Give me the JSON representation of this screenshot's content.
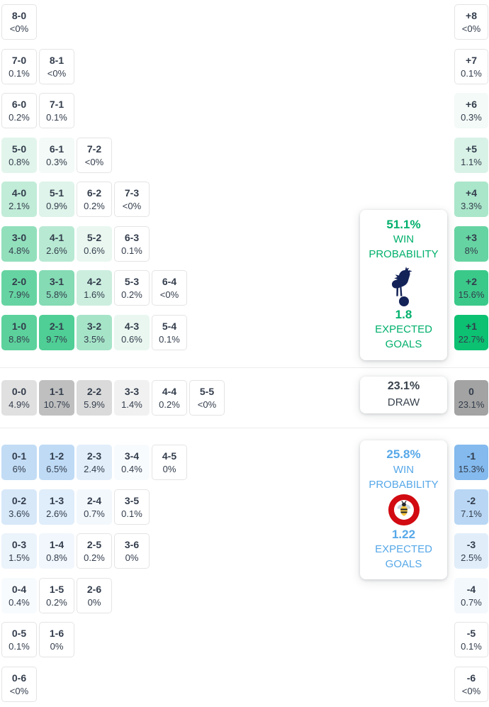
{
  "colors": {
    "home": "#00b06c",
    "draw": "#39434e",
    "away": "#57a8e8",
    "home_crest_navy": "#132257",
    "away_crest_red": "#d20a11"
  },
  "cards": {
    "home": {
      "win_pct": "51.1%",
      "win_label": "WIN PROBABILITY",
      "expected": "1.8",
      "expected_label": "EXPECTED GOALS"
    },
    "draw": {
      "pct": "23.1%",
      "label": "DRAW"
    },
    "away": {
      "win_pct": "25.8%",
      "win_label": "WIN PROBABILITY",
      "expected": "1.22",
      "expected_label": "EXPECTED GOALS"
    }
  },
  "chart_data": {
    "type": "heatmap",
    "description": "Correct-score probability matrix with goal-margin totals on the right edge",
    "home": {
      "rows": [
        {
          "cells": [
            {
              "score": "8-0",
              "pct": "<0%",
              "bg": "#ffffff"
            }
          ],
          "margin": {
            "margin": "+8",
            "pct": "<0%",
            "bg": "#ffffff"
          }
        },
        {
          "cells": [
            {
              "score": "7-0",
              "pct": "0.1%",
              "bg": "#ffffff"
            },
            {
              "score": "8-1",
              "pct": "<0%",
              "bg": "#ffffff"
            }
          ],
          "margin": {
            "margin": "+7",
            "pct": "0.1%",
            "bg": "#ffffff"
          }
        },
        {
          "cells": [
            {
              "score": "6-0",
              "pct": "0.2%",
              "bg": "#ffffff"
            },
            {
              "score": "7-1",
              "pct": "0.1%",
              "bg": "#ffffff"
            }
          ],
          "margin": {
            "margin": "+6",
            "pct": "0.3%",
            "bg": "#f3faf7"
          }
        },
        {
          "cells": [
            {
              "score": "5-0",
              "pct": "0.8%",
              "bg": "#e2f5ec"
            },
            {
              "score": "6-1",
              "pct": "0.3%",
              "bg": "#f3faf7"
            },
            {
              "score": "7-2",
              "pct": "<0%",
              "bg": "#ffffff"
            }
          ],
          "margin": {
            "margin": "+5",
            "pct": "1.1%",
            "bg": "#d9f2e7"
          }
        },
        {
          "cells": [
            {
              "score": "4-0",
              "pct": "2.1%",
              "bg": "#c1ecd8"
            },
            {
              "score": "5-1",
              "pct": "0.9%",
              "bg": "#dff4ea"
            },
            {
              "score": "6-2",
              "pct": "0.2%",
              "bg": "#ffffff"
            },
            {
              "score": "7-3",
              "pct": "<0%",
              "bg": "#ffffff"
            }
          ],
          "margin": {
            "margin": "+4",
            "pct": "3.3%",
            "bg": "#aae6ca"
          }
        },
        {
          "cells": [
            {
              "score": "3-0",
              "pct": "4.8%",
              "bg": "#92dfbc"
            },
            {
              "score": "4-1",
              "pct": "2.6%",
              "bg": "#b8e9d3"
            },
            {
              "score": "5-2",
              "pct": "0.6%",
              "bg": "#e9f7f0"
            },
            {
              "score": "6-3",
              "pct": "0.1%",
              "bg": "#ffffff"
            }
          ],
          "margin": {
            "margin": "+3",
            "pct": "8%",
            "bg": "#66d4a2"
          }
        },
        {
          "cells": [
            {
              "score": "2-0",
              "pct": "7.9%",
              "bg": "#66d4a2"
            },
            {
              "score": "3-1",
              "pct": "5.8%",
              "bg": "#84dbb4"
            },
            {
              "score": "4-2",
              "pct": "1.6%",
              "bg": "#cceedf"
            },
            {
              "score": "5-3",
              "pct": "0.2%",
              "bg": "#ffffff"
            },
            {
              "score": "6-4",
              "pct": "<0%",
              "bg": "#ffffff"
            }
          ],
          "margin": {
            "margin": "+2",
            "pct": "15.6%",
            "bg": "#3bc98a"
          }
        },
        {
          "cells": [
            {
              "score": "1-0",
              "pct": "8.8%",
              "bg": "#5cd19c"
            },
            {
              "score": "2-1",
              "pct": "9.7%",
              "bg": "#4fce95"
            },
            {
              "score": "3-2",
              "pct": "3.5%",
              "bg": "#a6e4c8"
            },
            {
              "score": "4-3",
              "pct": "0.6%",
              "bg": "#e9f7f0"
            },
            {
              "score": "5-4",
              "pct": "0.1%",
              "bg": "#ffffff"
            }
          ],
          "margin": {
            "margin": "+1",
            "pct": "22.7%",
            "bg": "#0cc172"
          }
        }
      ]
    },
    "draw": {
      "rows": [
        {
          "cells": [
            {
              "score": "0-0",
              "pct": "4.9%",
              "bg": "#e0e0e0"
            },
            {
              "score": "1-1",
              "pct": "10.7%",
              "bg": "#bfbfbf"
            },
            {
              "score": "2-2",
              "pct": "5.9%",
              "bg": "#dadada"
            },
            {
              "score": "3-3",
              "pct": "1.4%",
              "bg": "#f1f1f1"
            },
            {
              "score": "4-4",
              "pct": "0.2%",
              "bg": "#ffffff"
            },
            {
              "score": "5-5",
              "pct": "<0%",
              "bg": "#ffffff"
            }
          ],
          "margin": {
            "margin": "0",
            "pct": "23.1%",
            "bg": "#a3a3a3"
          }
        }
      ]
    },
    "away": {
      "rows": [
        {
          "cells": [
            {
              "score": "0-1",
              "pct": "6%",
              "bg": "#c2dcf5"
            },
            {
              "score": "1-2",
              "pct": "6.5%",
              "bg": "#bedaf5"
            },
            {
              "score": "2-3",
              "pct": "2.4%",
              "bg": "#e2eefa"
            },
            {
              "score": "3-4",
              "pct": "0.4%",
              "bg": "#f8fbfe"
            },
            {
              "score": "4-5",
              "pct": "0%",
              "bg": "#ffffff"
            }
          ],
          "margin": {
            "margin": "-1",
            "pct": "15.3%",
            "bg": "#84baee"
          }
        },
        {
          "cells": [
            {
              "score": "0-2",
              "pct": "3.6%",
              "bg": "#d7e8f9"
            },
            {
              "score": "1-3",
              "pct": "2.6%",
              "bg": "#e0edfa"
            },
            {
              "score": "2-4",
              "pct": "0.7%",
              "bg": "#f3f8fd"
            },
            {
              "score": "3-5",
              "pct": "0.1%",
              "bg": "#ffffff"
            }
          ],
          "margin": {
            "margin": "-2",
            "pct": "7.1%",
            "bg": "#b9d7f4"
          }
        },
        {
          "cells": [
            {
              "score": "0-3",
              "pct": "1.5%",
              "bg": "#ebf3fb"
            },
            {
              "score": "1-4",
              "pct": "0.8%",
              "bg": "#f2f7fd"
            },
            {
              "score": "2-5",
              "pct": "0.2%",
              "bg": "#ffffff"
            },
            {
              "score": "3-6",
              "pct": "0%",
              "bg": "#ffffff"
            }
          ],
          "margin": {
            "margin": "-3",
            "pct": "2.5%",
            "bg": "#e1eefa"
          }
        },
        {
          "cells": [
            {
              "score": "0-4",
              "pct": "0.4%",
              "bg": "#f8fbfe"
            },
            {
              "score": "1-5",
              "pct": "0.2%",
              "bg": "#ffffff"
            },
            {
              "score": "2-6",
              "pct": "0%",
              "bg": "#ffffff"
            }
          ],
          "margin": {
            "margin": "-4",
            "pct": "0.7%",
            "bg": "#f3f8fd"
          }
        },
        {
          "cells": [
            {
              "score": "0-5",
              "pct": "0.1%",
              "bg": "#ffffff"
            },
            {
              "score": "1-6",
              "pct": "0%",
              "bg": "#ffffff"
            }
          ],
          "margin": {
            "margin": "-5",
            "pct": "0.1%",
            "bg": "#ffffff"
          }
        },
        {
          "cells": [
            {
              "score": "0-6",
              "pct": "<0%",
              "bg": "#ffffff"
            }
          ],
          "margin": {
            "margin": "-6",
            "pct": "<0%",
            "bg": "#ffffff"
          }
        }
      ]
    }
  }
}
